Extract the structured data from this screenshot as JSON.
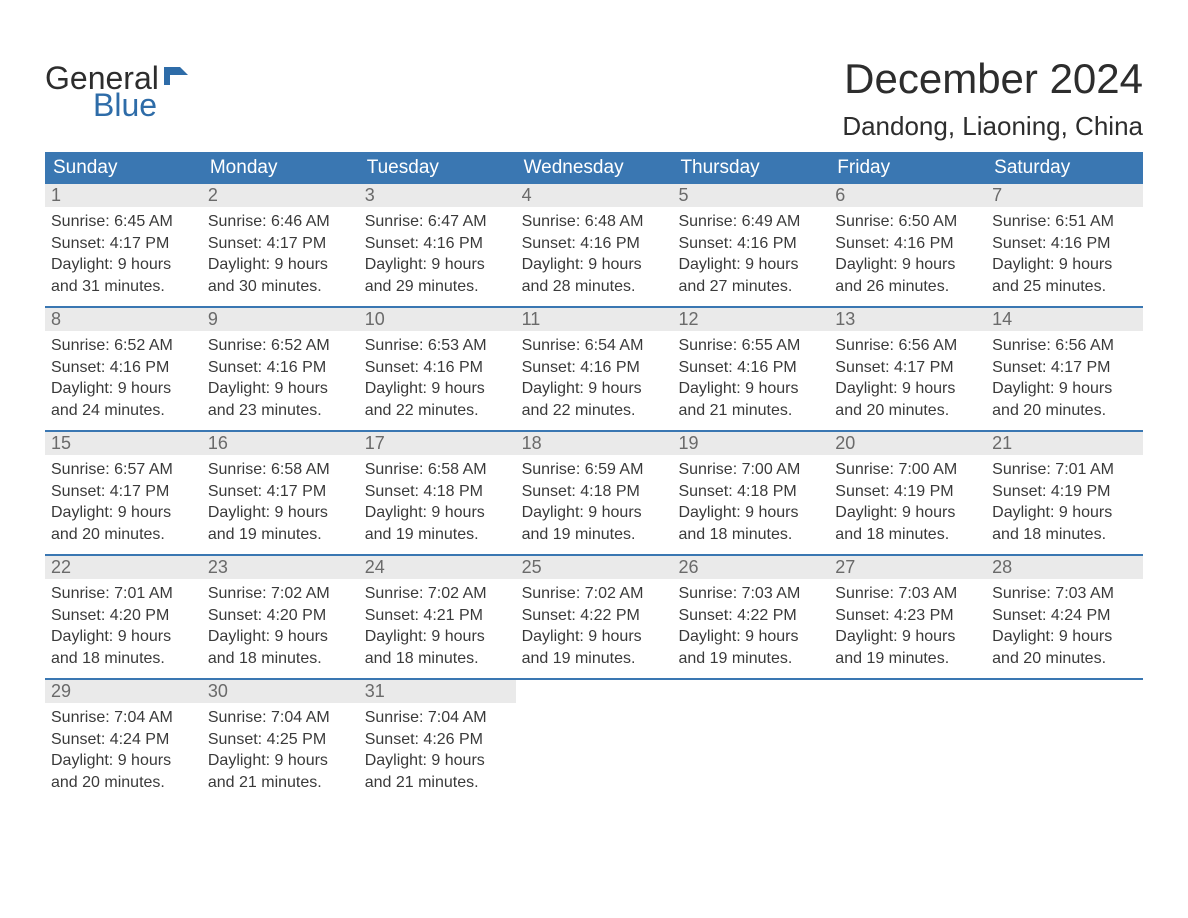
{
  "logo": {
    "text1": "General",
    "text2": "Blue",
    "flag_color": "#2e6ca8"
  },
  "title": {
    "month": "December 2024",
    "location": "Dandong, Liaoning, China"
  },
  "colors": {
    "header_bg": "#3a77b2",
    "header_text": "#ffffff",
    "daynum_bg": "#eaeaea",
    "daynum_text": "#6a6a6a",
    "body_text": "#3a3a3a",
    "border": "#3a77b2",
    "logo_blue": "#2e6ca8"
  },
  "day_headers": [
    "Sunday",
    "Monday",
    "Tuesday",
    "Wednesday",
    "Thursday",
    "Friday",
    "Saturday"
  ],
  "weeks": [
    [
      {
        "num": "1",
        "sunrise": "Sunrise: 6:45 AM",
        "sunset": "Sunset: 4:17 PM",
        "day1": "Daylight: 9 hours",
        "day2": "and 31 minutes."
      },
      {
        "num": "2",
        "sunrise": "Sunrise: 6:46 AM",
        "sunset": "Sunset: 4:17 PM",
        "day1": "Daylight: 9 hours",
        "day2": "and 30 minutes."
      },
      {
        "num": "3",
        "sunrise": "Sunrise: 6:47 AM",
        "sunset": "Sunset: 4:16 PM",
        "day1": "Daylight: 9 hours",
        "day2": "and 29 minutes."
      },
      {
        "num": "4",
        "sunrise": "Sunrise: 6:48 AM",
        "sunset": "Sunset: 4:16 PM",
        "day1": "Daylight: 9 hours",
        "day2": "and 28 minutes."
      },
      {
        "num": "5",
        "sunrise": "Sunrise: 6:49 AM",
        "sunset": "Sunset: 4:16 PM",
        "day1": "Daylight: 9 hours",
        "day2": "and 27 minutes."
      },
      {
        "num": "6",
        "sunrise": "Sunrise: 6:50 AM",
        "sunset": "Sunset: 4:16 PM",
        "day1": "Daylight: 9 hours",
        "day2": "and 26 minutes."
      },
      {
        "num": "7",
        "sunrise": "Sunrise: 6:51 AM",
        "sunset": "Sunset: 4:16 PM",
        "day1": "Daylight: 9 hours",
        "day2": "and 25 minutes."
      }
    ],
    [
      {
        "num": "8",
        "sunrise": "Sunrise: 6:52 AM",
        "sunset": "Sunset: 4:16 PM",
        "day1": "Daylight: 9 hours",
        "day2": "and 24 minutes."
      },
      {
        "num": "9",
        "sunrise": "Sunrise: 6:52 AM",
        "sunset": "Sunset: 4:16 PM",
        "day1": "Daylight: 9 hours",
        "day2": "and 23 minutes."
      },
      {
        "num": "10",
        "sunrise": "Sunrise: 6:53 AM",
        "sunset": "Sunset: 4:16 PM",
        "day1": "Daylight: 9 hours",
        "day2": "and 22 minutes."
      },
      {
        "num": "11",
        "sunrise": "Sunrise: 6:54 AM",
        "sunset": "Sunset: 4:16 PM",
        "day1": "Daylight: 9 hours",
        "day2": "and 22 minutes."
      },
      {
        "num": "12",
        "sunrise": "Sunrise: 6:55 AM",
        "sunset": "Sunset: 4:16 PM",
        "day1": "Daylight: 9 hours",
        "day2": "and 21 minutes."
      },
      {
        "num": "13",
        "sunrise": "Sunrise: 6:56 AM",
        "sunset": "Sunset: 4:17 PM",
        "day1": "Daylight: 9 hours",
        "day2": "and 20 minutes."
      },
      {
        "num": "14",
        "sunrise": "Sunrise: 6:56 AM",
        "sunset": "Sunset: 4:17 PM",
        "day1": "Daylight: 9 hours",
        "day2": "and 20 minutes."
      }
    ],
    [
      {
        "num": "15",
        "sunrise": "Sunrise: 6:57 AM",
        "sunset": "Sunset: 4:17 PM",
        "day1": "Daylight: 9 hours",
        "day2": "and 20 minutes."
      },
      {
        "num": "16",
        "sunrise": "Sunrise: 6:58 AM",
        "sunset": "Sunset: 4:17 PM",
        "day1": "Daylight: 9 hours",
        "day2": "and 19 minutes."
      },
      {
        "num": "17",
        "sunrise": "Sunrise: 6:58 AM",
        "sunset": "Sunset: 4:18 PM",
        "day1": "Daylight: 9 hours",
        "day2": "and 19 minutes."
      },
      {
        "num": "18",
        "sunrise": "Sunrise: 6:59 AM",
        "sunset": "Sunset: 4:18 PM",
        "day1": "Daylight: 9 hours",
        "day2": "and 19 minutes."
      },
      {
        "num": "19",
        "sunrise": "Sunrise: 7:00 AM",
        "sunset": "Sunset: 4:18 PM",
        "day1": "Daylight: 9 hours",
        "day2": "and 18 minutes."
      },
      {
        "num": "20",
        "sunrise": "Sunrise: 7:00 AM",
        "sunset": "Sunset: 4:19 PM",
        "day1": "Daylight: 9 hours",
        "day2": "and 18 minutes."
      },
      {
        "num": "21",
        "sunrise": "Sunrise: 7:01 AM",
        "sunset": "Sunset: 4:19 PM",
        "day1": "Daylight: 9 hours",
        "day2": "and 18 minutes."
      }
    ],
    [
      {
        "num": "22",
        "sunrise": "Sunrise: 7:01 AM",
        "sunset": "Sunset: 4:20 PM",
        "day1": "Daylight: 9 hours",
        "day2": "and 18 minutes."
      },
      {
        "num": "23",
        "sunrise": "Sunrise: 7:02 AM",
        "sunset": "Sunset: 4:20 PM",
        "day1": "Daylight: 9 hours",
        "day2": "and 18 minutes."
      },
      {
        "num": "24",
        "sunrise": "Sunrise: 7:02 AM",
        "sunset": "Sunset: 4:21 PM",
        "day1": "Daylight: 9 hours",
        "day2": "and 18 minutes."
      },
      {
        "num": "25",
        "sunrise": "Sunrise: 7:02 AM",
        "sunset": "Sunset: 4:22 PM",
        "day1": "Daylight: 9 hours",
        "day2": "and 19 minutes."
      },
      {
        "num": "26",
        "sunrise": "Sunrise: 7:03 AM",
        "sunset": "Sunset: 4:22 PM",
        "day1": "Daylight: 9 hours",
        "day2": "and 19 minutes."
      },
      {
        "num": "27",
        "sunrise": "Sunrise: 7:03 AM",
        "sunset": "Sunset: 4:23 PM",
        "day1": "Daylight: 9 hours",
        "day2": "and 19 minutes."
      },
      {
        "num": "28",
        "sunrise": "Sunrise: 7:03 AM",
        "sunset": "Sunset: 4:24 PM",
        "day1": "Daylight: 9 hours",
        "day2": "and 20 minutes."
      }
    ],
    [
      {
        "num": "29",
        "sunrise": "Sunrise: 7:04 AM",
        "sunset": "Sunset: 4:24 PM",
        "day1": "Daylight: 9 hours",
        "day2": "and 20 minutes."
      },
      {
        "num": "30",
        "sunrise": "Sunrise: 7:04 AM",
        "sunset": "Sunset: 4:25 PM",
        "day1": "Daylight: 9 hours",
        "day2": "and 21 minutes."
      },
      {
        "num": "31",
        "sunrise": "Sunrise: 7:04 AM",
        "sunset": "Sunset: 4:26 PM",
        "day1": "Daylight: 9 hours",
        "day2": "and 21 minutes."
      },
      null,
      null,
      null,
      null
    ]
  ]
}
